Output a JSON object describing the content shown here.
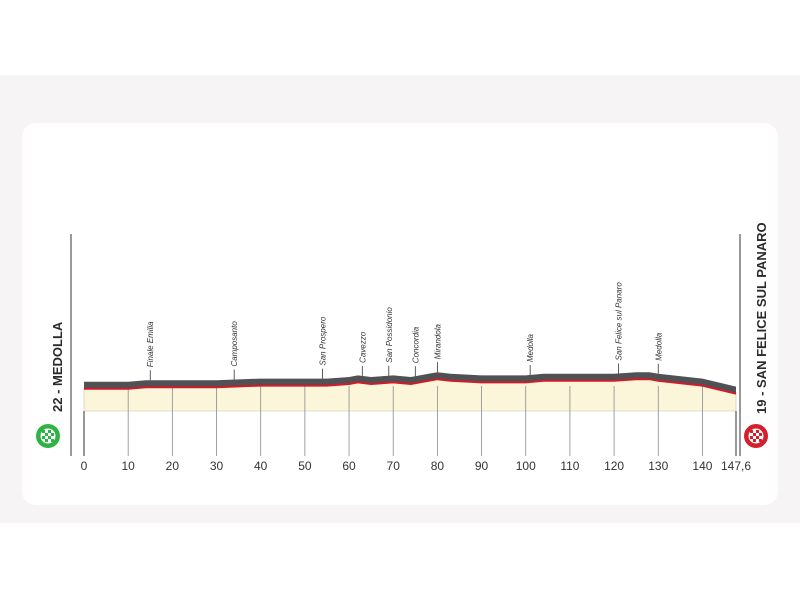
{
  "chart_data": {
    "type": "area",
    "title": "",
    "xlabel": "",
    "ylabel": "",
    "xlim": [
      0,
      147.6
    ],
    "x_ticks": [
      "0",
      "10",
      "20",
      "30",
      "40",
      "50",
      "60",
      "70",
      "80",
      "90",
      "100",
      "110",
      "120",
      "130",
      "140",
      "147,6"
    ],
    "x_tick_values": [
      0,
      10,
      20,
      30,
      40,
      50,
      60,
      70,
      80,
      90,
      100,
      110,
      120,
      130,
      140,
      147.6
    ],
    "start": {
      "label": "22 - MEDOLLA",
      "km": 0
    },
    "finish": {
      "label": "19 - SAN FELICE SUL PANARO",
      "km": 147.6
    },
    "profile": [
      [
        0,
        22
      ],
      [
        10,
        22
      ],
      [
        14,
        23
      ],
      [
        20,
        23
      ],
      [
        30,
        23
      ],
      [
        40,
        24
      ],
      [
        50,
        24
      ],
      [
        55,
        24
      ],
      [
        60,
        25
      ],
      [
        62,
        26
      ],
      [
        65,
        25
      ],
      [
        70,
        26
      ],
      [
        74,
        25
      ],
      [
        78,
        27
      ],
      [
        80,
        28
      ],
      [
        83,
        27
      ],
      [
        90,
        26
      ],
      [
        100,
        26
      ],
      [
        104,
        27
      ],
      [
        110,
        27
      ],
      [
        120,
        27
      ],
      [
        125,
        28
      ],
      [
        128,
        28
      ],
      [
        130,
        27
      ],
      [
        140,
        24
      ],
      [
        147.6,
        19
      ]
    ],
    "towns": [
      {
        "name": "Finale Emilia",
        "km": 15
      },
      {
        "name": "Camposanto",
        "km": 34
      },
      {
        "name": "San Prospero",
        "km": 54
      },
      {
        "name": "Cavezzo",
        "km": 63
      },
      {
        "name": "San Possidonio",
        "km": 69
      },
      {
        "name": "Concordia",
        "km": 75
      },
      {
        "name": "Mirandola",
        "km": 80
      },
      {
        "name": "Medolla",
        "km": 101
      },
      {
        "name": "San Felice sul Panaro",
        "km": 121
      },
      {
        "name": "Medolla",
        "km": 130
      }
    ]
  },
  "colors": {
    "top_band": "#505154",
    "road_line": "#d11a2a",
    "fill": "#fbf6d9",
    "grid": "#8a8a8a",
    "start_badge": "#2fb344",
    "finish_badge": "#d61f2c"
  },
  "icons": {
    "start": "checkered-flag-icon",
    "finish": "checkered-flag-icon"
  }
}
